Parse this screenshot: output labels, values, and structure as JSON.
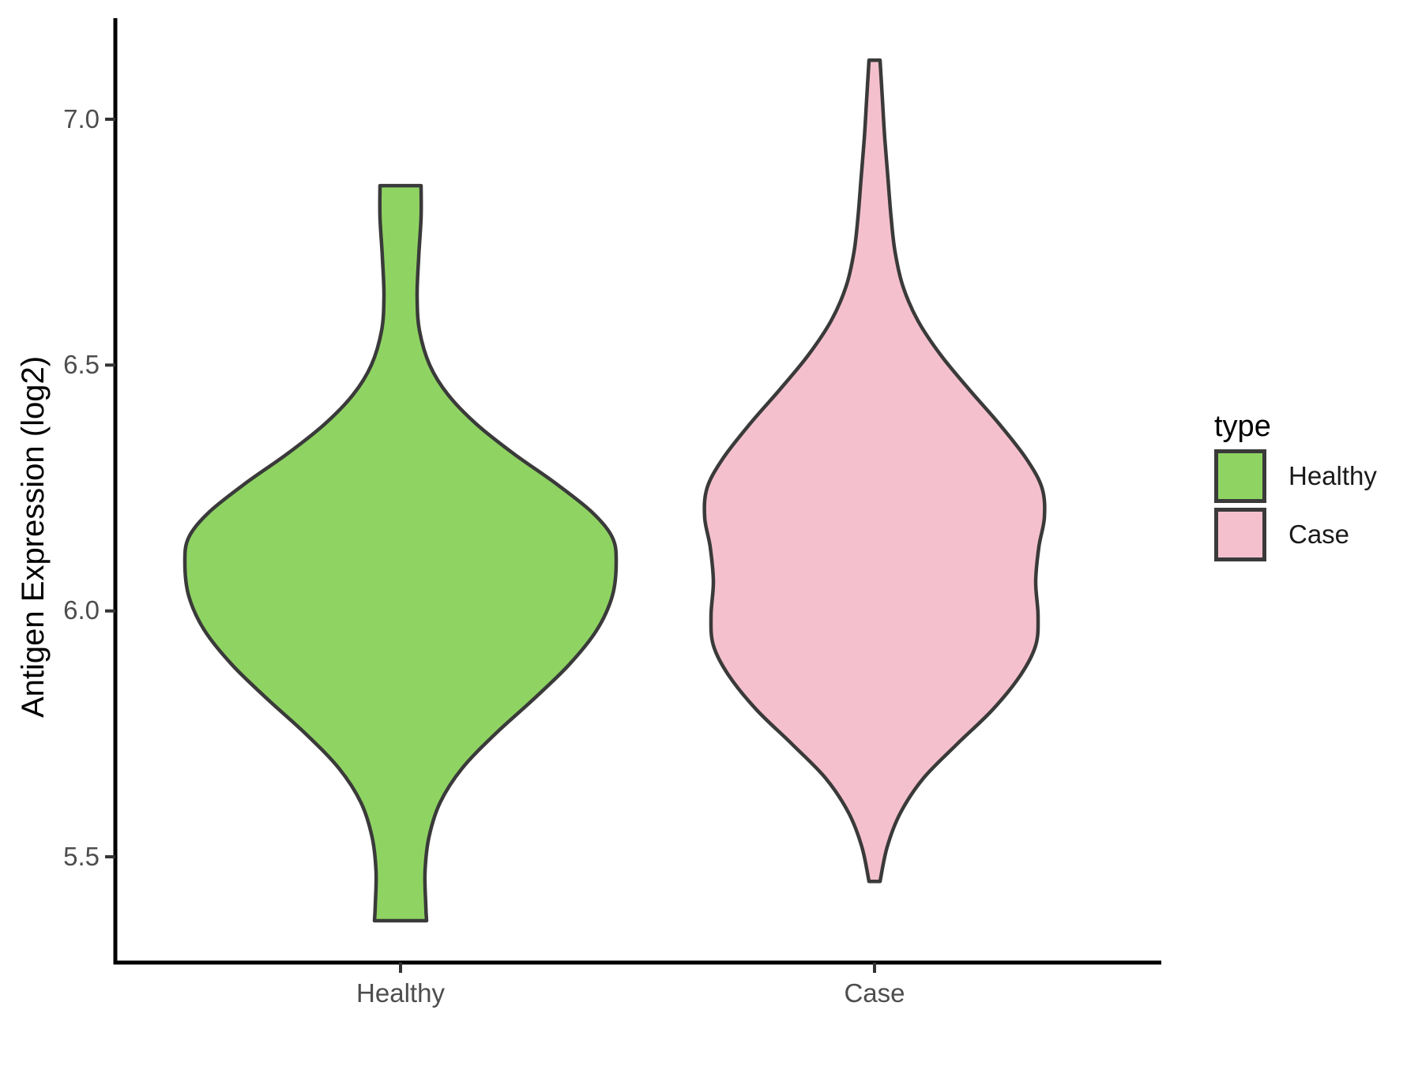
{
  "page": {
    "background": "#FFFFFF"
  },
  "y_axis": {
    "title": "Antigen Expression (log2)",
    "tick_labels": [
      "7.0",
      "6.5",
      "6.0",
      "5.5"
    ]
  },
  "x_axis": {
    "tick_labels": [
      "Healthy",
      "Case"
    ]
  },
  "legend": {
    "title": "type",
    "items": [
      {
        "label": "Healthy",
        "color": "#8FD463"
      },
      {
        "label": "Case",
        "color": "#F5C0CD"
      }
    ]
  },
  "chart_data": {
    "type": "violin",
    "title": "",
    "xlabel": "",
    "ylabel": "Antigen Expression (log2)",
    "categories": [
      "Healthy",
      "Case"
    ],
    "y_ticks": [
      7.0,
      6.5,
      6.0,
      5.5
    ],
    "ylim": [
      5.28,
      7.21
    ],
    "grid": false,
    "legend_position": "right",
    "outline_color": "#3A3A3A",
    "series": [
      {
        "name": "Healthy",
        "fill": "#8FD463",
        "data_range": [
          5.37,
          6.87
        ],
        "peak_value": 6.12,
        "profile_v_hw": [
          [
            6.865,
            26
          ],
          [
            6.8,
            26
          ],
          [
            6.72,
            23
          ],
          [
            6.64,
            21
          ],
          [
            6.57,
            24
          ],
          [
            6.5,
            37
          ],
          [
            6.44,
            60
          ],
          [
            6.38,
            96
          ],
          [
            6.32,
            143
          ],
          [
            6.26,
            196
          ],
          [
            6.2,
            243
          ],
          [
            6.15,
            268
          ],
          [
            6.1,
            273
          ],
          [
            6.03,
            268
          ],
          [
            5.96,
            248
          ],
          [
            5.89,
            213
          ],
          [
            5.82,
            168
          ],
          [
            5.75,
            120
          ],
          [
            5.68,
            78
          ],
          [
            5.61,
            50
          ],
          [
            5.54,
            36
          ],
          [
            5.47,
            31
          ],
          [
            5.4,
            32
          ],
          [
            5.37,
            33
          ]
        ]
      },
      {
        "name": "Case",
        "fill": "#F5C0CD",
        "data_range": [
          5.45,
          7.12
        ],
        "peak_value": 6.2,
        "profile_v_hw": [
          [
            7.12,
            7
          ],
          [
            7.04,
            10
          ],
          [
            6.96,
            13
          ],
          [
            6.88,
            17
          ],
          [
            6.8,
            21
          ],
          [
            6.73,
            26
          ],
          [
            6.66,
            36
          ],
          [
            6.59,
            55
          ],
          [
            6.52,
            84
          ],
          [
            6.45,
            120
          ],
          [
            6.38,
            158
          ],
          [
            6.31,
            192
          ],
          [
            6.25,
            212
          ],
          [
            6.19,
            215
          ],
          [
            6.13,
            208
          ],
          [
            6.06,
            204
          ],
          [
            5.99,
            207
          ],
          [
            5.93,
            204
          ],
          [
            5.87,
            185
          ],
          [
            5.8,
            150
          ],
          [
            5.73,
            105
          ],
          [
            5.66,
            62
          ],
          [
            5.59,
            33
          ],
          [
            5.52,
            16
          ],
          [
            5.45,
            7
          ]
        ]
      }
    ]
  }
}
